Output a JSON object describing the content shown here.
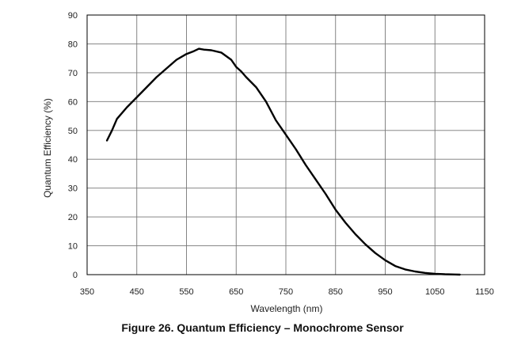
{
  "chart_data": {
    "type": "line",
    "title": "Figure 26. Quantum Efficiency – Monochrome Sensor",
    "xlabel": "Wavelength (nm)",
    "ylabel": "Quantum Efficiency (%)",
    "xlim": [
      350,
      1150
    ],
    "ylim": [
      0,
      90
    ],
    "xticks": [
      350,
      450,
      550,
      650,
      750,
      850,
      950,
      1050,
      1150
    ],
    "yticks": [
      0,
      10,
      20,
      30,
      40,
      50,
      60,
      70,
      80,
      90
    ],
    "grid": true,
    "series": [
      {
        "name": "Quantum Efficiency",
        "color": "#000000",
        "x": [
          390,
          400,
          410,
          430,
          450,
          470,
          490,
          510,
          530,
          550,
          565,
          575,
          585,
          600,
          620,
          640,
          650,
          660,
          670,
          690,
          710,
          730,
          750,
          770,
          790,
          810,
          830,
          850,
          870,
          890,
          910,
          930,
          950,
          970,
          990,
          1010,
          1030,
          1050,
          1070,
          1090,
          1100
        ],
        "y": [
          46.5,
          50,
          54,
          58,
          61.5,
          65,
          68.5,
          71.5,
          74.5,
          76.5,
          77.5,
          78.3,
          78,
          77.8,
          77,
          74.5,
          72,
          70.5,
          68.5,
          65,
          60,
          53.5,
          48.5,
          43.5,
          38,
          33,
          28,
          22.5,
          18,
          14,
          10.5,
          7.5,
          5,
          3,
          1.8,
          1.1,
          0.6,
          0.3,
          0.15,
          0.05,
          0
        ]
      }
    ]
  }
}
